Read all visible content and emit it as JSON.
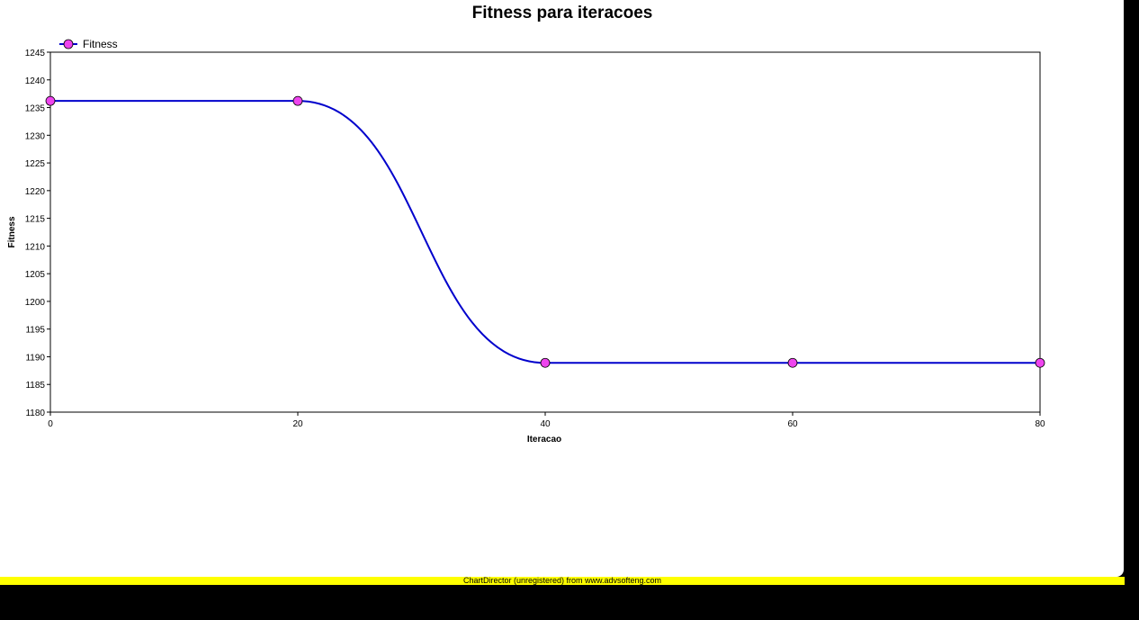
{
  "chart_data": {
    "type": "line",
    "title": "Fitness para iteracoes",
    "xlabel": "Iteracao",
    "ylabel": "Fitness",
    "xlim": [
      0,
      80
    ],
    "ylim": [
      1180,
      1245
    ],
    "x_ticks": [
      0,
      20,
      40,
      60,
      80
    ],
    "y_ticks": [
      1180,
      1185,
      1190,
      1195,
      1200,
      1205,
      1210,
      1215,
      1220,
      1225,
      1230,
      1235,
      1240,
      1245
    ],
    "grid": false,
    "legend": "top-left",
    "smooth": true,
    "series": [
      {
        "name": "Fitness",
        "x": [
          0,
          20,
          40,
          60,
          80
        ],
        "y": [
          1236.2,
          1236.2,
          1188.9,
          1188.9,
          1188.9
        ],
        "line_color": "#0000cc",
        "marker_color": "#ee44ee"
      }
    ]
  },
  "footer": {
    "text": "ChartDirector (unregistered) from www.advsofteng.com"
  }
}
